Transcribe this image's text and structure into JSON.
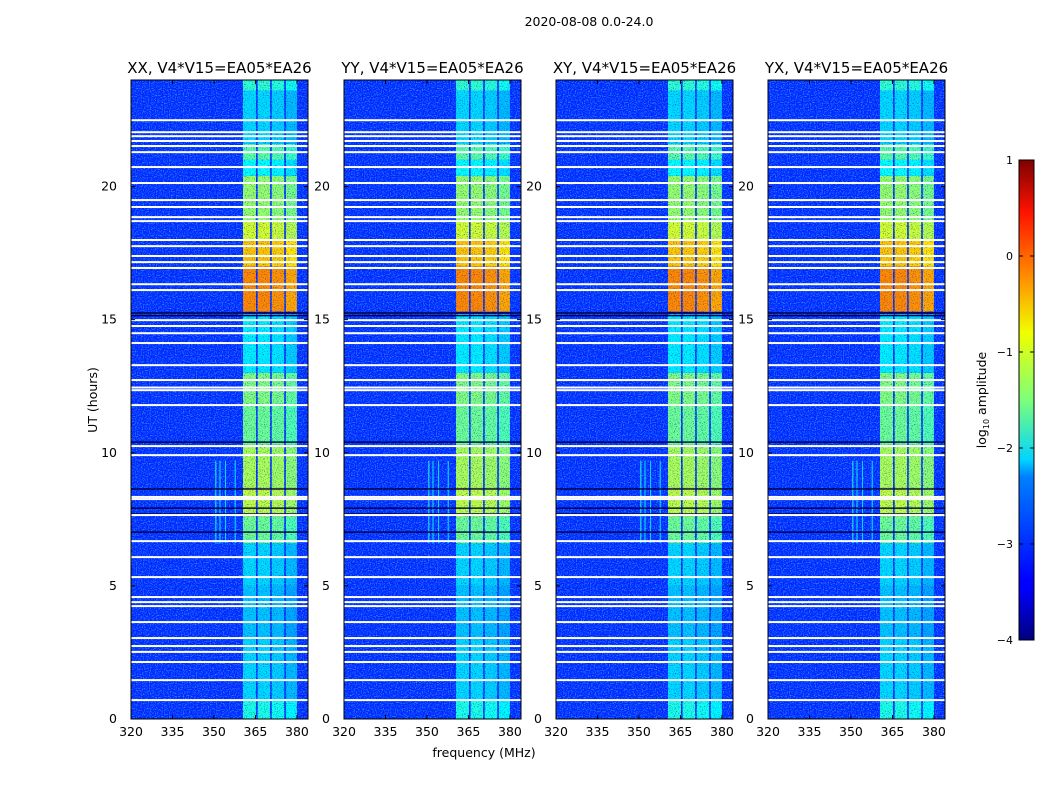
{
  "chart_data": {
    "type": "heatmap",
    "suptitle": "2020-08-08 0.0-24.0",
    "xlabel": "frequency (MHz)",
    "ylabel": "UT (hours)",
    "xlim": [
      320,
      384
    ],
    "ylim": [
      0,
      24
    ],
    "xticks": [
      "320",
      "335",
      "350",
      "365",
      "380"
    ],
    "xtick_values": [
      320,
      335,
      350,
      365,
      380
    ],
    "yticks": [
      "0",
      "5",
      "10",
      "15",
      "20"
    ],
    "ytick_values": [
      0,
      5,
      10,
      15,
      20
    ],
    "panels": [
      {
        "title": "XX, V4*V15=EA05*EA26"
      },
      {
        "title": "YY, V4*V15=EA05*EA26"
      },
      {
        "title": "XY, V4*V15=EA05*EA26"
      },
      {
        "title": "YX, V4*V15=EA05*EA26"
      }
    ],
    "background_level": -3.2,
    "band_channels_mhz": [
      [
        360.5,
        365.2
      ],
      [
        365.8,
        370.3
      ],
      [
        370.9,
        375.4
      ],
      [
        376.0,
        380.0
      ]
    ],
    "band_levels": [
      [
        0,
        0.7,
        -2.0
      ],
      [
        0.7,
        3,
        -2.3
      ],
      [
        3,
        5,
        -2.4
      ],
      [
        5,
        6.6,
        -2.3
      ],
      [
        6.6,
        7.6,
        -1.6
      ],
      [
        7.6,
        8.7,
        -1.2
      ],
      [
        8.7,
        10.3,
        -1.3
      ],
      [
        10.3,
        11.8,
        -1.6
      ],
      [
        11.8,
        13,
        -1.5
      ],
      [
        13,
        15.2,
        -2.2
      ],
      [
        15.3,
        17,
        -0.3
      ],
      [
        17,
        18,
        -0.6
      ],
      [
        18,
        18.7,
        -1.1
      ],
      [
        18.7,
        20.4,
        -1.4
      ],
      [
        20.4,
        21,
        -2.1
      ],
      [
        21,
        21.6,
        -1.7
      ],
      [
        21.6,
        23.6,
        -2.3
      ],
      [
        23.6,
        24,
        -1.9
      ]
    ],
    "rfi_lines": [
      {
        "freq": 350.5,
        "t0": 6.6,
        "t1": 9.7,
        "level": -2.0
      },
      {
        "freq": 352.0,
        "t0": 6.6,
        "t1": 9.7,
        "level": -2.2
      },
      {
        "freq": 354.0,
        "t0": 6.6,
        "t1": 9.7,
        "level": -2.3
      },
      {
        "freq": 357.5,
        "t0": 6.6,
        "t1": 9.7,
        "level": -2.2
      }
    ],
    "flagged_hours": [
      22.49,
      22.04,
      21.89,
      21.71,
      21.52,
      21.29,
      20.73,
      20.13,
      19.49,
      19.23,
      18.85,
      18.7,
      17.99,
      17.76,
      17.39,
      17.16,
      16.94,
      16.33,
      16.11,
      14.98,
      14.76,
      14.49,
      14.12,
      13.29,
      12.73,
      12.45,
      12.35,
      11.79,
      10.25,
      9.91,
      8.34,
      8.26,
      7.66,
      6.68,
      6.08,
      5.33,
      4.58,
      4.39,
      4.24,
      3.64,
      3.04,
      2.74,
      2.52,
      2.14,
      1.46,
      0.71
    ],
    "dark_rows_hours": [
      15.25,
      15.15,
      10.4,
      8.64,
      7.92,
      7.7,
      7.02
    ],
    "colorbar": {
      "label_main": "log",
      "label_sub": "10",
      "label_rest": " amplitude",
      "range": [
        -4,
        1
      ],
      "ticks": [
        "1",
        "0",
        "−1",
        "−2",
        "−3",
        "−4"
      ],
      "tick_values": [
        1,
        0,
        -1,
        -2,
        -3,
        -4
      ],
      "colormap": "jet"
    }
  }
}
